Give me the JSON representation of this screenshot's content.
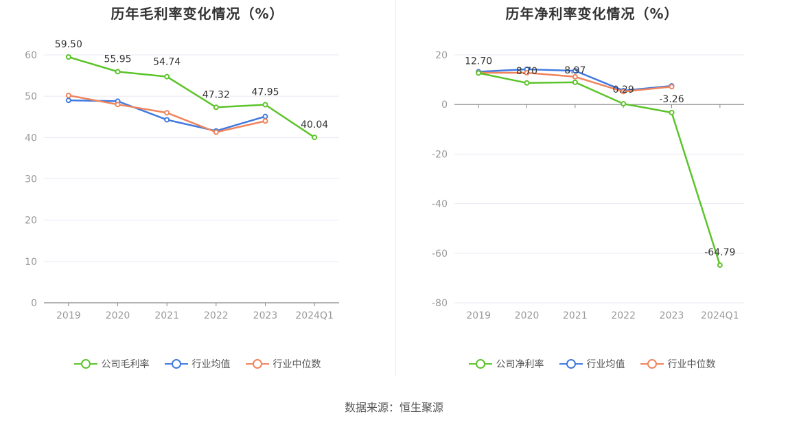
{
  "chart_data": [
    {
      "type": "line",
      "title": "历年毛利率变化情况（%）",
      "categories": [
        "2019",
        "2020",
        "2021",
        "2022",
        "2023",
        "2024Q1"
      ],
      "ylim": [
        0,
        60
      ],
      "yticks": [
        0,
        10,
        20,
        30,
        40,
        50,
        60
      ],
      "series": [
        {
          "name": "公司毛利率",
          "color": "#5bc429",
          "values": [
            59.5,
            55.95,
            54.74,
            47.32,
            47.95,
            40.04
          ],
          "labels": [
            "59.50",
            "55.95",
            "54.74",
            "47.32",
            "47.95",
            "40.04"
          ]
        },
        {
          "name": "行业均值",
          "color": "#3f79e0",
          "values": [
            49.0,
            48.8,
            44.3,
            41.6,
            45.1,
            null
          ]
        },
        {
          "name": "行业中位数",
          "color": "#f0845c",
          "values": [
            50.2,
            48.0,
            46.0,
            41.3,
            44.0,
            null
          ]
        }
      ],
      "legend_position": "bottom",
      "grid": true
    },
    {
      "type": "line",
      "title": "历年净利率变化情况（%）",
      "categories": [
        "2019",
        "2020",
        "2021",
        "2022",
        "2023",
        "2024Q1"
      ],
      "ylim": [
        -80,
        20
      ],
      "yticks": [
        -80,
        -60,
        -40,
        -20,
        0,
        20
      ],
      "series": [
        {
          "name": "公司净利率",
          "color": "#5bc429",
          "values": [
            12.7,
            8.7,
            8.97,
            0.29,
            -3.26,
            -64.79
          ],
          "labels": [
            "12.70",
            "8.70",
            "8.97",
            "0.29",
            "-3.26",
            "-64.79"
          ]
        },
        {
          "name": "行业均值",
          "color": "#3f79e0",
          "values": [
            13.2,
            14.2,
            13.6,
            5.6,
            7.5,
            null
          ]
        },
        {
          "name": "行业中位数",
          "color": "#f0845c",
          "values": [
            12.8,
            12.8,
            11.2,
            5.2,
            7.2,
            null
          ]
        }
      ],
      "legend_position": "bottom",
      "grid": true
    }
  ],
  "source": "数据来源：恒生聚源"
}
